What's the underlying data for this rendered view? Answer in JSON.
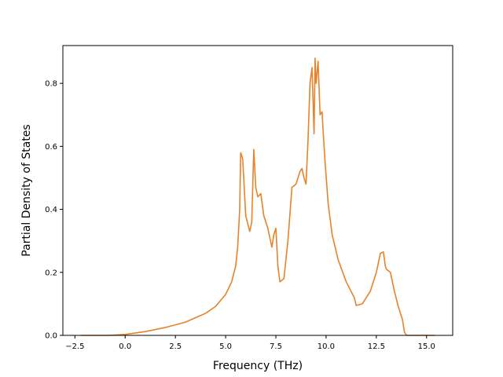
{
  "chart_data": {
    "type": "line",
    "title": "",
    "xlabel": "Frequency (THz)",
    "ylabel": "Partial Density of States",
    "xlim": [
      -3.1,
      16.3
    ],
    "ylim": [
      0.0,
      0.92
    ],
    "xticks": [
      -2.5,
      0.0,
      2.5,
      5.0,
      7.5,
      10.0,
      12.5,
      15.0
    ],
    "xtick_labels": [
      "−2.5",
      "0.0",
      "2.5",
      "5.0",
      "7.5",
      "10.0",
      "12.5",
      "15.0"
    ],
    "yticks": [
      0.0,
      0.2,
      0.4,
      0.6,
      0.8
    ],
    "ytick_labels": [
      "0.0",
      "0.2",
      "0.4",
      "0.6",
      "0.8"
    ],
    "grid": false,
    "legend": "none",
    "series": [
      {
        "color": "#e8822a",
        "x": [
          -2.2,
          -0.8,
          0.0,
          1.0,
          2.0,
          3.0,
          4.0,
          4.5,
          5.0,
          5.3,
          5.5,
          5.6,
          5.7,
          5.75,
          5.85,
          6.0,
          6.2,
          6.3,
          6.4,
          6.5,
          6.6,
          6.75,
          6.9,
          7.1,
          7.3,
          7.4,
          7.5,
          7.6,
          7.7,
          7.9,
          8.1,
          8.3,
          8.5,
          8.7,
          8.8,
          8.9,
          9.0,
          9.1,
          9.2,
          9.3,
          9.4,
          9.45,
          9.5,
          9.6,
          9.7,
          9.8,
          9.85,
          9.95,
          10.1,
          10.3,
          10.6,
          11.0,
          11.4,
          11.5,
          11.8,
          12.2,
          12.5,
          12.7,
          12.85,
          12.95,
          13.0,
          13.2,
          13.4,
          13.6,
          13.8,
          13.9,
          14.0,
          15.4
        ],
        "y": [
          0.0,
          0.0,
          0.003,
          0.012,
          0.025,
          0.042,
          0.07,
          0.092,
          0.13,
          0.17,
          0.22,
          0.28,
          0.4,
          0.58,
          0.56,
          0.38,
          0.33,
          0.36,
          0.59,
          0.47,
          0.44,
          0.45,
          0.38,
          0.34,
          0.28,
          0.32,
          0.34,
          0.22,
          0.17,
          0.18,
          0.3,
          0.47,
          0.48,
          0.52,
          0.53,
          0.5,
          0.48,
          0.62,
          0.8,
          0.85,
          0.64,
          0.88,
          0.8,
          0.87,
          0.7,
          0.71,
          0.65,
          0.55,
          0.42,
          0.32,
          0.24,
          0.17,
          0.12,
          0.095,
          0.1,
          0.14,
          0.2,
          0.26,
          0.265,
          0.22,
          0.21,
          0.2,
          0.14,
          0.09,
          0.05,
          0.01,
          0.0,
          0.0
        ]
      }
    ]
  }
}
